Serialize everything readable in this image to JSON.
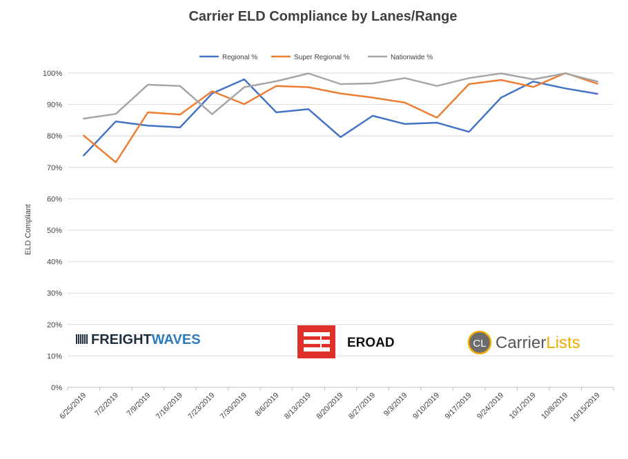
{
  "chart_data": {
    "type": "line",
    "title": "Carrier ELD Compliance by Lanes/Range",
    "xlabel": "",
    "ylabel": "ELD Compliant",
    "ylim": [
      0,
      100
    ],
    "yticks": [
      "0%",
      "10%",
      "20%",
      "30%",
      "40%",
      "50%",
      "60%",
      "70%",
      "80%",
      "90%",
      "100%"
    ],
    "ytick_values": [
      0,
      10,
      20,
      30,
      40,
      50,
      60,
      70,
      80,
      90,
      100
    ],
    "grid": true,
    "legend_position": "top",
    "categories": [
      "6/25/2019",
      "7/2/2019",
      "7/9/2019",
      "7/16/2019",
      "7/23/2019",
      "7/30/2019",
      "8/6/2019",
      "8/13/2019",
      "8/20/2019",
      "8/27/2019",
      "9/3/2019",
      "9/10/2019",
      "9/17/2019",
      "9/24/2019",
      "10/1/2019",
      "10/8/2019",
      "10/15/2019"
    ],
    "series": [
      {
        "name": "Regional %",
        "color": "#4472C4",
        "values": [
          73.8,
          84.6,
          83.3,
          82.7,
          93.5,
          98.0,
          87.5,
          88.5,
          79.6,
          86.4,
          83.8,
          84.2,
          81.3,
          92.2,
          97.3,
          95.1,
          93.4
        ]
      },
      {
        "name": "Super Regional %",
        "color": "#ED7D31",
        "values": [
          80.1,
          71.6,
          87.5,
          86.8,
          94.2,
          90.1,
          95.9,
          95.5,
          93.5,
          92.2,
          90.6,
          85.8,
          96.5,
          97.8,
          95.6,
          100.0,
          96.6
        ]
      },
      {
        "name": "Nationwide %",
        "color": "#A5A5A5",
        "values": [
          85.5,
          87.0,
          96.3,
          95.9,
          86.9,
          95.5,
          97.4,
          99.9,
          96.5,
          96.7,
          98.4,
          95.9,
          98.4,
          99.9,
          98.0,
          99.9,
          97.3
        ]
      }
    ]
  },
  "logos": {
    "freightwaves": {
      "text_a": "FREIGHT",
      "text_b": "WAVES",
      "color_a": "#1f2d3d",
      "color_b": "#2a7bbf"
    },
    "eroad": {
      "text": "EROAD",
      "color": "#e0302a"
    },
    "carrierlists": {
      "badge": "CL",
      "text_a": "Carrier",
      "text_b": "Lists",
      "color_a": "#555555",
      "color_b": "#f2a900"
    }
  }
}
